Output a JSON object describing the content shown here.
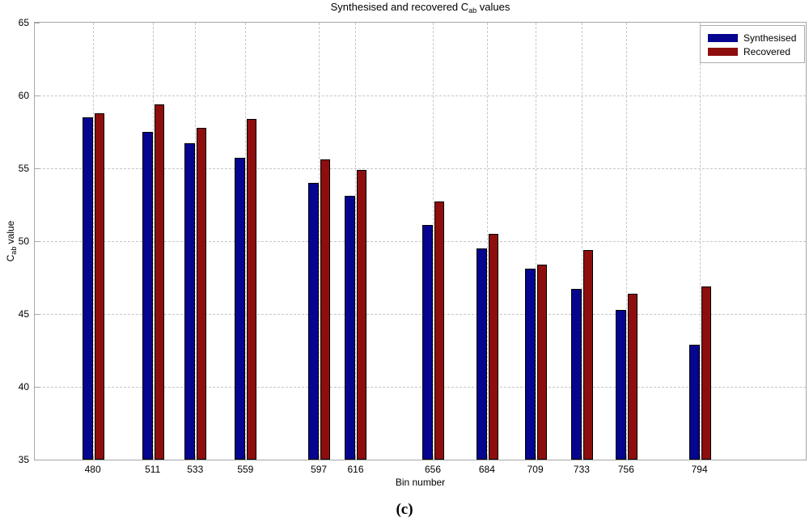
{
  "figure": {
    "caption": "(c)"
  },
  "chart_data": {
    "type": "bar",
    "title": {
      "prefix": "Synthesised and recovered C",
      "sub": "ab",
      "suffix": " values"
    },
    "xlabel": "Bin number",
    "ylabel": {
      "prefix": "C",
      "sub": "ab",
      "suffix": " value"
    },
    "categories": [
      480,
      511,
      533,
      559,
      597,
      616,
      656,
      684,
      709,
      733,
      756,
      794
    ],
    "series": [
      {
        "name": "Synthesised",
        "color": "#05058f",
        "values": [
          58.5,
          57.5,
          56.7,
          55.7,
          54.0,
          53.1,
          51.1,
          49.5,
          48.1,
          46.7,
          45.3,
          42.9
        ]
      },
      {
        "name": "Recovered",
        "color": "#8e0e0e",
        "values": [
          58.8,
          59.4,
          57.8,
          58.4,
          55.6,
          54.9,
          52.7,
          50.5,
          48.4,
          49.4,
          46.4,
          46.9
        ]
      }
    ],
    "ylim": [
      35,
      65
    ],
    "xlim": [
      450,
      849
    ],
    "yticks": [
      35,
      40,
      45,
      50,
      55,
      60,
      65
    ],
    "grid": true,
    "legend_position": "top-right",
    "axis_color": "#a6a6a6",
    "grid_color": "#c6c6c6",
    "bar_edge_color": "#000000"
  }
}
